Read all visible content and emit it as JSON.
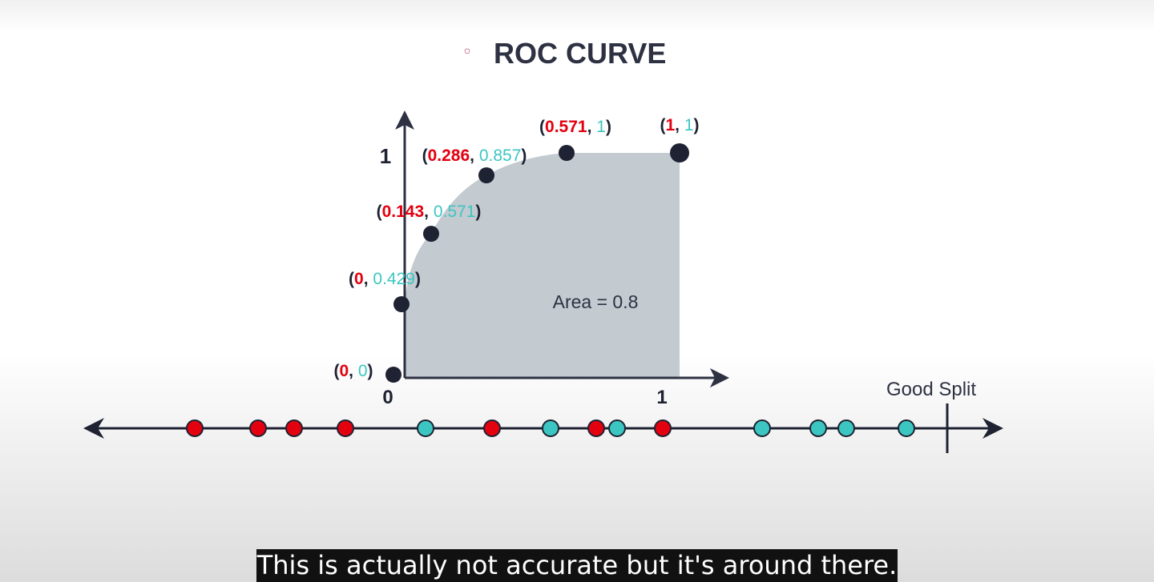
{
  "slide": {
    "bullet": "◦",
    "title": "ROC CURVE"
  },
  "colors": {
    "background": "#ffffff",
    "axis": "#2d3142",
    "fpr_red": "#e3000f",
    "tpr_teal": "#3cc6c2",
    "area_fill": "#c3cad0",
    "point": "#1e2232",
    "bullet": "#b24b6b"
  },
  "chart_data": {
    "type": "area",
    "title": "ROC CURVE",
    "xlabel": "",
    "ylabel": "",
    "xlim": [
      0,
      1
    ],
    "ylim": [
      0,
      1
    ],
    "x_ticks": [
      "0",
      "1"
    ],
    "y_ticks": [
      "1"
    ],
    "area_label": "Area = 0.8",
    "points": [
      {
        "x": "0",
        "y": "0"
      },
      {
        "x": "0",
        "y": "0.429"
      },
      {
        "x": "0.143",
        "y": "0.571"
      },
      {
        "x": "0.286",
        "y": "0.857"
      },
      {
        "x": "0.571",
        "y": "1"
      },
      {
        "x": "1",
        "y": "1"
      }
    ]
  },
  "number_line": {
    "label": "Good Split",
    "dots": [
      "red",
      "red",
      "red",
      "red",
      "teal",
      "red",
      "teal",
      "red",
      "teal",
      "red",
      "teal",
      "teal",
      "teal",
      "teal"
    ]
  },
  "caption": "This is actually not accurate but it's around there."
}
